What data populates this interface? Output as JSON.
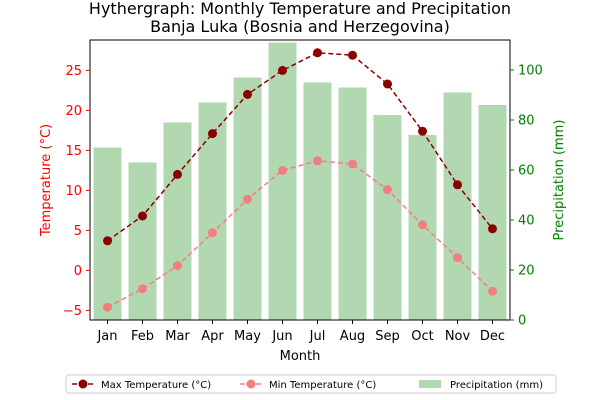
{
  "chart_data": {
    "type": "bar+line",
    "title": "Hythergraph: Monthly Temperature and Precipitation",
    "subtitle": "Banja Luka (Bosnia and Herzegovina)",
    "xlabel": "Month",
    "ylabel_left": "Temperature (°C)",
    "ylabel_right": "Precipitation (mm)",
    "categories": [
      "Jan",
      "Feb",
      "Mar",
      "Apr",
      "May",
      "Jun",
      "Jul",
      "Aug",
      "Sep",
      "Oct",
      "Nov",
      "Dec"
    ],
    "y_left": {
      "ylim": [
        -6.2,
        28.8
      ],
      "ticks": [
        -5,
        0,
        5,
        10,
        15,
        20,
        25
      ],
      "color": "#ff0000"
    },
    "y_right": {
      "ylim": [
        0,
        112
      ],
      "ticks": [
        0,
        20,
        40,
        60,
        80,
        100
      ],
      "color": "#008000"
    },
    "series": [
      {
        "name": "Max Temperature (°C)",
        "kind": "line",
        "axis": "left",
        "color": "#8b0000",
        "linestyle": "dashed",
        "values": [
          3.7,
          6.8,
          12.0,
          17.1,
          22.0,
          25.0,
          27.2,
          26.9,
          23.3,
          17.4,
          10.7,
          5.2
        ]
      },
      {
        "name": "Min Temperature (°C)",
        "kind": "line",
        "axis": "left",
        "color": "#f08080",
        "linestyle": "dashed",
        "values": [
          -4.6,
          -2.3,
          0.6,
          4.7,
          8.9,
          12.5,
          13.7,
          13.3,
          10.1,
          5.7,
          1.6,
          -2.6
        ]
      },
      {
        "name": "Precipitation (mm)",
        "kind": "bar",
        "axis": "right",
        "color": "#b2d8b2",
        "values": [
          69,
          63,
          79,
          87,
          97,
          111,
          95,
          93,
          82,
          74,
          91,
          86
        ]
      }
    ],
    "legend": {
      "placement": "bottom-center",
      "columns": 3
    },
    "grid": false
  }
}
